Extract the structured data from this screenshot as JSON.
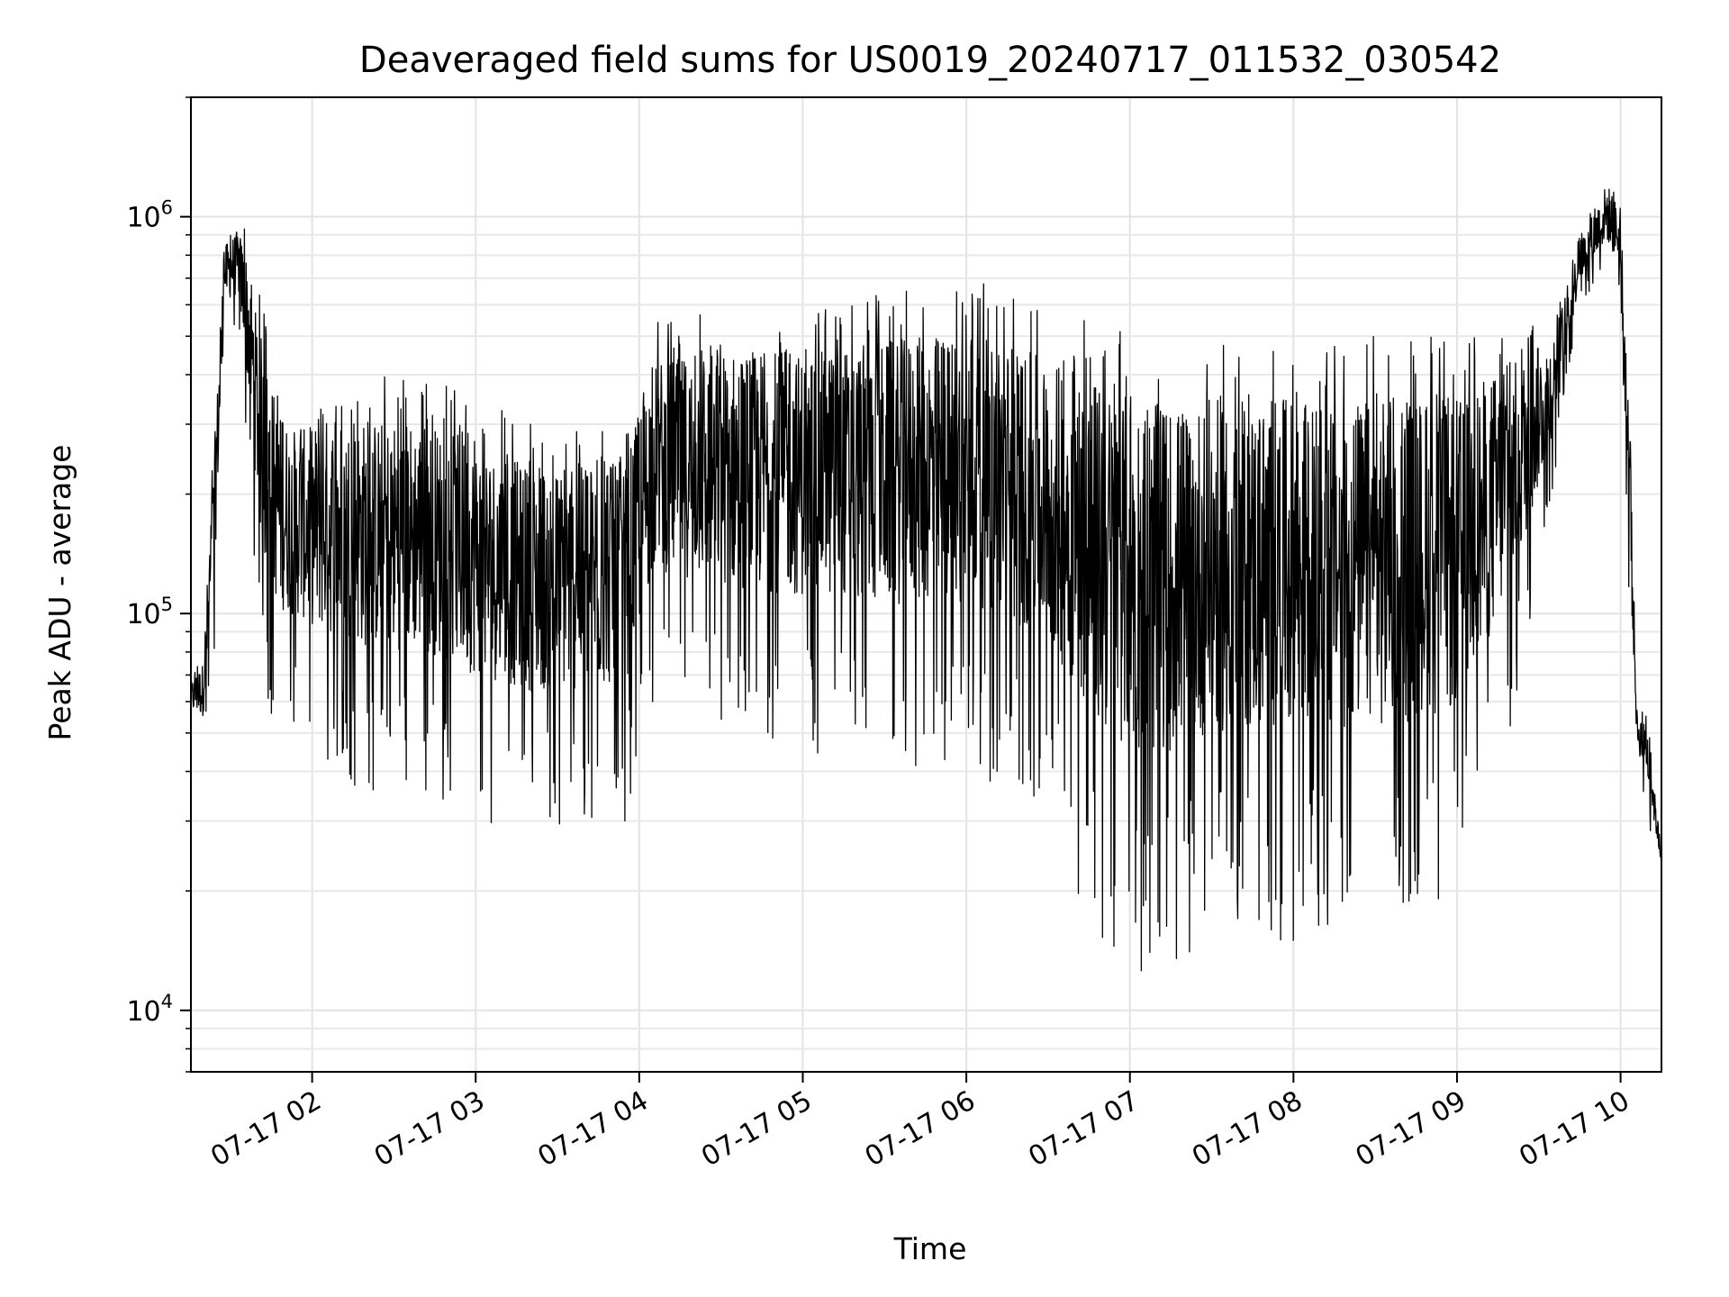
{
  "chart_data": {
    "type": "line",
    "title": "Deaveraged field sums for US0019_20240717_011532_030542",
    "xlabel": "Time",
    "ylabel": "Peak ADU - average",
    "yscale": "log",
    "xlim": [
      "2024-07-17T01:15:32",
      "2024-07-17T10:15:00"
    ],
    "ylim": [
      7000,
      2000000
    ],
    "grid": true,
    "x_ticks": [
      {
        "t": "2024-07-17T02:00",
        "label": "07-17 02"
      },
      {
        "t": "2024-07-17T03:00",
        "label": "07-17 03"
      },
      {
        "t": "2024-07-17T04:00",
        "label": "07-17 04"
      },
      {
        "t": "2024-07-17T05:00",
        "label": "07-17 05"
      },
      {
        "t": "2024-07-17T06:00",
        "label": "07-17 06"
      },
      {
        "t": "2024-07-17T07:00",
        "label": "07-17 07"
      },
      {
        "t": "2024-07-17T08:00",
        "label": "07-17 08"
      },
      {
        "t": "2024-07-17T09:00",
        "label": "07-17 09"
      },
      {
        "t": "2024-07-17T10:00",
        "label": "07-17 10"
      }
    ],
    "y_ticks": [
      {
        "value": 10000,
        "base": "10",
        "exp": "4"
      },
      {
        "value": 100000,
        "base": "10",
        "exp": "5"
      },
      {
        "value": 1000000,
        "base": "10",
        "exp": "6"
      }
    ],
    "line_color": "#000000",
    "series": [
      {
        "envelope": "approximate upper/lower extent of a dense, rapidly oscillating signal",
        "x": [
          "2024-07-17T01:15:32",
          "2024-07-17T01:20",
          "2024-07-17T01:24",
          "2024-07-17T01:28",
          "2024-07-17T01:33",
          "2024-07-17T01:37",
          "2024-07-17T01:42",
          "2024-07-17T01:48",
          "2024-07-17T01:55",
          "2024-07-17T02:05",
          "2024-07-17T02:20",
          "2024-07-17T02:40",
          "2024-07-17T03:00",
          "2024-07-17T03:20",
          "2024-07-17T03:40",
          "2024-07-17T03:55",
          "2024-07-17T04:05",
          "2024-07-17T04:30",
          "2024-07-17T05:00",
          "2024-07-17T05:30",
          "2024-07-17T06:00",
          "2024-07-17T06:30",
          "2024-07-17T06:50",
          "2024-07-17T07:10",
          "2024-07-17T07:30",
          "2024-07-17T08:00",
          "2024-07-17T08:30",
          "2024-07-17T09:00",
          "2024-07-17T09:20",
          "2024-07-17T09:35",
          "2024-07-17T09:45",
          "2024-07-17T09:55",
          "2024-07-17T10:00",
          "2024-07-17T10:03",
          "2024-07-17T10:06",
          "2024-07-17T10:10",
          "2024-07-17T10:15"
        ],
        "upper": [
          70000,
          80000,
          300000,
          900000,
          1000000,
          900000,
          600000,
          400000,
          350000,
          400000,
          400000,
          400000,
          350000,
          300000,
          300000,
          300000,
          550000,
          600000,
          600000,
          650000,
          700000,
          600000,
          550000,
          500000,
          500000,
          500000,
          500000,
          500000,
          550000,
          550000,
          900000,
          1300000,
          1100000,
          400000,
          60000,
          55000,
          25000
        ],
        "lower": [
          50000,
          45000,
          70000,
          500000,
          500000,
          200000,
          60000,
          50000,
          50000,
          40000,
          35000,
          35000,
          30000,
          28000,
          28000,
          30000,
          60000,
          50000,
          45000,
          40000,
          40000,
          30000,
          14000,
          12000,
          15000,
          15000,
          15000,
          18000,
          50000,
          200000,
          600000,
          700000,
          600000,
          100000,
          40000,
          30000,
          22000
        ]
      }
    ]
  }
}
